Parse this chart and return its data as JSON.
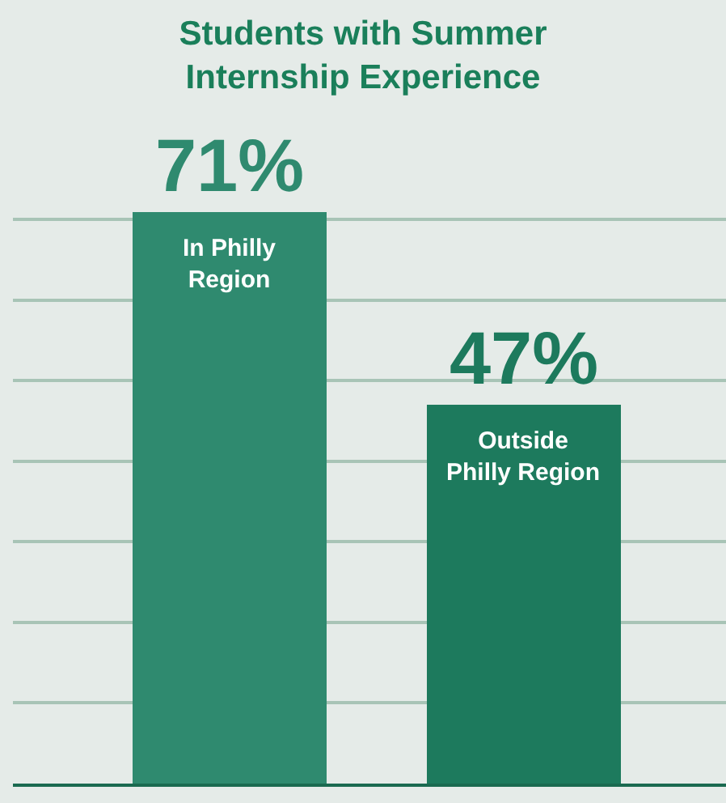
{
  "chart_data": {
    "type": "bar",
    "title": "Students with Summer\nInternship Experience",
    "categories": [
      "In Philly\nRegion",
      "Outside\nPhilly Region"
    ],
    "values": [
      71,
      47
    ],
    "colors": [
      "#2f8a6f",
      "#1d7a5d"
    ],
    "value_labels": [
      "71%",
      "47%"
    ],
    "grid": "y",
    "tick_labels": false
  }
}
